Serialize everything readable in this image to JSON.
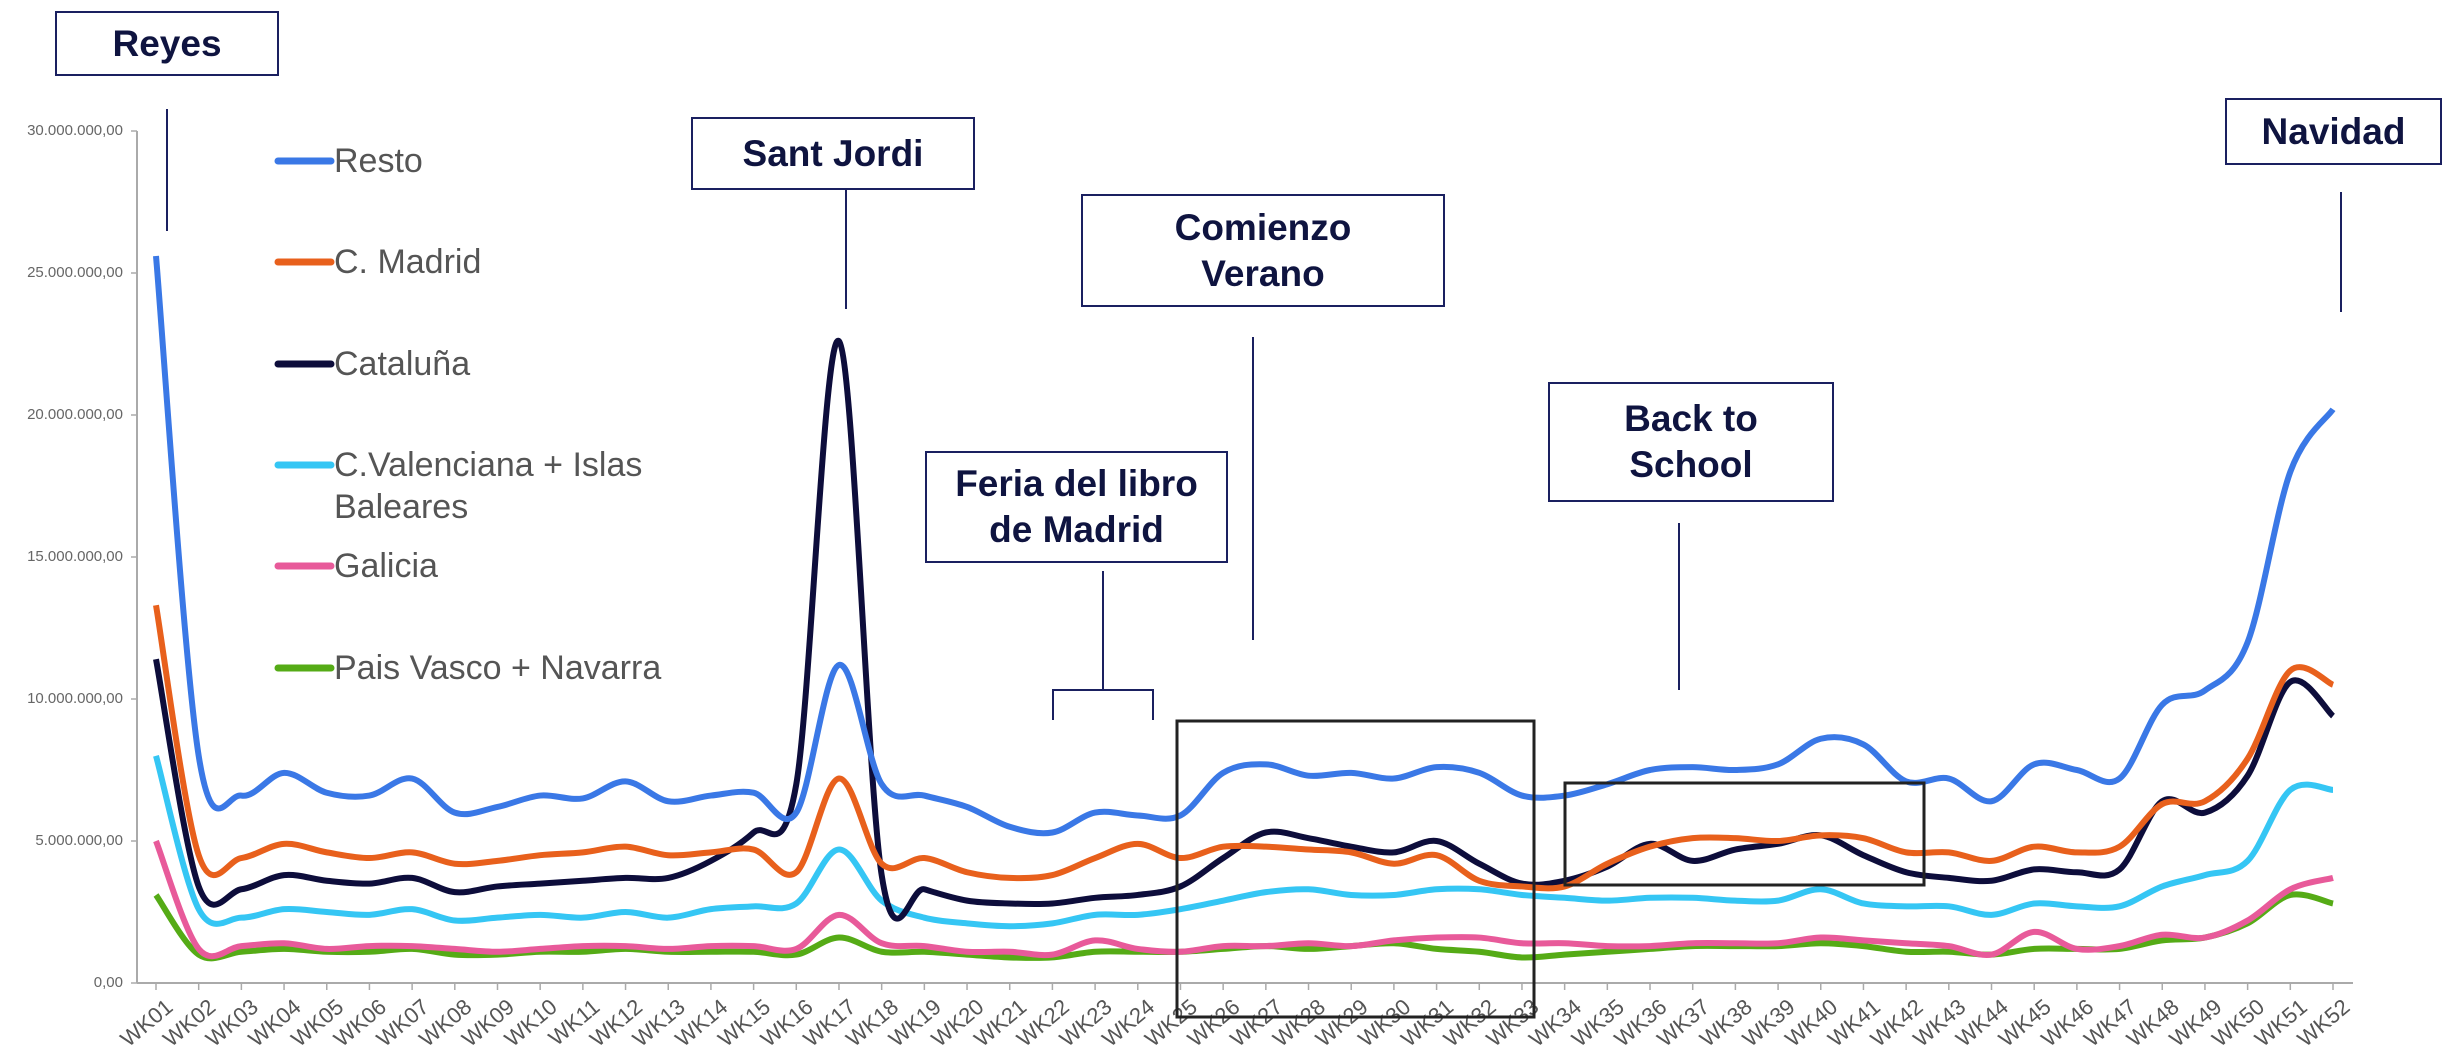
{
  "chart_data": {
    "type": "line",
    "categories": [
      "WK01",
      "WK02",
      "WK03",
      "WK04",
      "WK05",
      "WK06",
      "WK07",
      "WK08",
      "WK09",
      "WK10",
      "WK11",
      "WK12",
      "WK13",
      "WK14",
      "WK15",
      "WK16",
      "WK17",
      "WK18",
      "WK19",
      "WK20",
      "WK21",
      "WK22",
      "WK23",
      "WK24",
      "WK25",
      "WK26",
      "WK27",
      "WK28",
      "WK29",
      "WK30",
      "WK31",
      "WK32",
      "WK33",
      "WK34",
      "WK35",
      "WK36",
      "WK37",
      "WK38",
      "WK39",
      "WK40",
      "WK41",
      "WK42",
      "WK43",
      "WK44",
      "WK45",
      "WK46",
      "WK47",
      "WK48",
      "WK49",
      "WK50",
      "WK51",
      "WK52"
    ],
    "series": [
      {
        "name": "Resto",
        "color": "#3a78e6",
        "values": [
          25600000,
          8000000,
          6600000,
          7400000,
          6700000,
          6600000,
          7200000,
          6000000,
          6200000,
          6600000,
          6500000,
          7100000,
          6400000,
          6600000,
          6700000,
          6000000,
          11200000,
          7000000,
          6600000,
          6200000,
          5500000,
          5300000,
          6000000,
          5900000,
          5900000,
          7400000,
          7700000,
          7300000,
          7400000,
          7200000,
          7600000,
          7400000,
          6600000,
          6600000,
          7000000,
          7500000,
          7600000,
          7500000,
          7700000,
          8600000,
          8400000,
          7100000,
          7200000,
          6400000,
          7700000,
          7500000,
          7200000,
          9800000,
          10300000,
          12000000,
          18000000,
          20200000
        ]
      },
      {
        "name": "C. Madrid",
        "color": "#e8601c",
        "values": [
          13300000,
          4500000,
          4400000,
          4900000,
          4600000,
          4400000,
          4600000,
          4200000,
          4300000,
          4500000,
          4600000,
          4800000,
          4500000,
          4600000,
          4700000,
          3900000,
          7200000,
          4200000,
          4400000,
          3900000,
          3700000,
          3800000,
          4400000,
          4900000,
          4400000,
          4800000,
          4800000,
          4700000,
          4600000,
          4200000,
          4500000,
          3600000,
          3400000,
          3400000,
          4200000,
          4800000,
          5100000,
          5100000,
          5000000,
          5200000,
          5100000,
          4600000,
          4600000,
          4300000,
          4800000,
          4600000,
          4800000,
          6300000,
          6400000,
          7900000,
          11000000,
          10500000
        ]
      },
      {
        "name": "Cataluña",
        "color": "#0d0d3b",
        "values": [
          11400000,
          3400000,
          3300000,
          3800000,
          3600000,
          3500000,
          3700000,
          3200000,
          3400000,
          3500000,
          3600000,
          3700000,
          3700000,
          4300000,
          5300000,
          7000000,
          22600000,
          3800000,
          3300000,
          2900000,
          2800000,
          2800000,
          3000000,
          3100000,
          3400000,
          4400000,
          5300000,
          5100000,
          4800000,
          4600000,
          5000000,
          4200000,
          3500000,
          3600000,
          4100000,
          4900000,
          4300000,
          4700000,
          4900000,
          5200000,
          4500000,
          3900000,
          3700000,
          3600000,
          4000000,
          3900000,
          4000000,
          6400000,
          6000000,
          7300000,
          10600000,
          9400000
        ]
      },
      {
        "name": "C.Valenciana + Islas Baleares",
        "color": "#35c6f4",
        "values": [
          8000000,
          2600000,
          2300000,
          2600000,
          2500000,
          2400000,
          2600000,
          2200000,
          2300000,
          2400000,
          2300000,
          2500000,
          2300000,
          2600000,
          2700000,
          2800000,
          4700000,
          2900000,
          2300000,
          2100000,
          2000000,
          2100000,
          2400000,
          2400000,
          2600000,
          2900000,
          3200000,
          3300000,
          3100000,
          3100000,
          3300000,
          3300000,
          3100000,
          3000000,
          2900000,
          3000000,
          3000000,
          2900000,
          2900000,
          3300000,
          2800000,
          2700000,
          2700000,
          2400000,
          2800000,
          2700000,
          2700000,
          3400000,
          3800000,
          4300000,
          6800000,
          6800000
        ]
      },
      {
        "name": "Galicia",
        "color": "#e85a9a",
        "values": [
          5000000,
          1200000,
          1300000,
          1400000,
          1200000,
          1300000,
          1300000,
          1200000,
          1100000,
          1200000,
          1300000,
          1300000,
          1200000,
          1300000,
          1300000,
          1200000,
          2400000,
          1400000,
          1300000,
          1100000,
          1100000,
          1000000,
          1500000,
          1200000,
          1100000,
          1300000,
          1300000,
          1400000,
          1300000,
          1500000,
          1600000,
          1600000,
          1400000,
          1400000,
          1300000,
          1300000,
          1400000,
          1400000,
          1400000,
          1600000,
          1500000,
          1400000,
          1300000,
          1000000,
          1800000,
          1200000,
          1300000,
          1700000,
          1600000,
          2200000,
          3300000,
          3700000
        ]
      },
      {
        "name": "Pais Vasco + Navarra",
        "color": "#55ab16",
        "values": [
          3100000,
          1000000,
          1100000,
          1200000,
          1100000,
          1100000,
          1200000,
          1000000,
          1000000,
          1100000,
          1100000,
          1200000,
          1100000,
          1100000,
          1100000,
          1000000,
          1600000,
          1100000,
          1100000,
          1000000,
          900000,
          900000,
          1100000,
          1100000,
          1100000,
          1200000,
          1300000,
          1200000,
          1300000,
          1400000,
          1200000,
          1100000,
          900000,
          1000000,
          1100000,
          1200000,
          1300000,
          1300000,
          1300000,
          1400000,
          1300000,
          1100000,
          1100000,
          1000000,
          1200000,
          1200000,
          1200000,
          1500000,
          1600000,
          2100000,
          3100000,
          2800000
        ]
      }
    ],
    "ylim": [
      0,
      30000000
    ],
    "yticks": [
      {
        "value": 0,
        "label": "0,00"
      },
      {
        "value": 5000000,
        "label": "5.000.000,00"
      },
      {
        "value": 10000000,
        "label": "10.000.000,00"
      },
      {
        "value": 15000000,
        "label": "15.000.000,00"
      },
      {
        "value": 20000000,
        "label": "20.000.000,00"
      },
      {
        "value": 25000000,
        "label": "25.000.000,00"
      },
      {
        "value": 30000000,
        "label": "30.000.000,00"
      }
    ],
    "legend": "upper left",
    "annotations": [
      {
        "lines": [
          "Reyes"
        ]
      },
      {
        "lines": [
          "Sant Jordi"
        ]
      },
      {
        "lines": [
          "Feria del libro",
          "de Madrid"
        ]
      },
      {
        "lines": [
          "Comienzo",
          "Verano"
        ]
      },
      {
        "lines": [
          "Back to",
          "School"
        ]
      },
      {
        "lines": [
          "Navidad"
        ]
      }
    ]
  }
}
